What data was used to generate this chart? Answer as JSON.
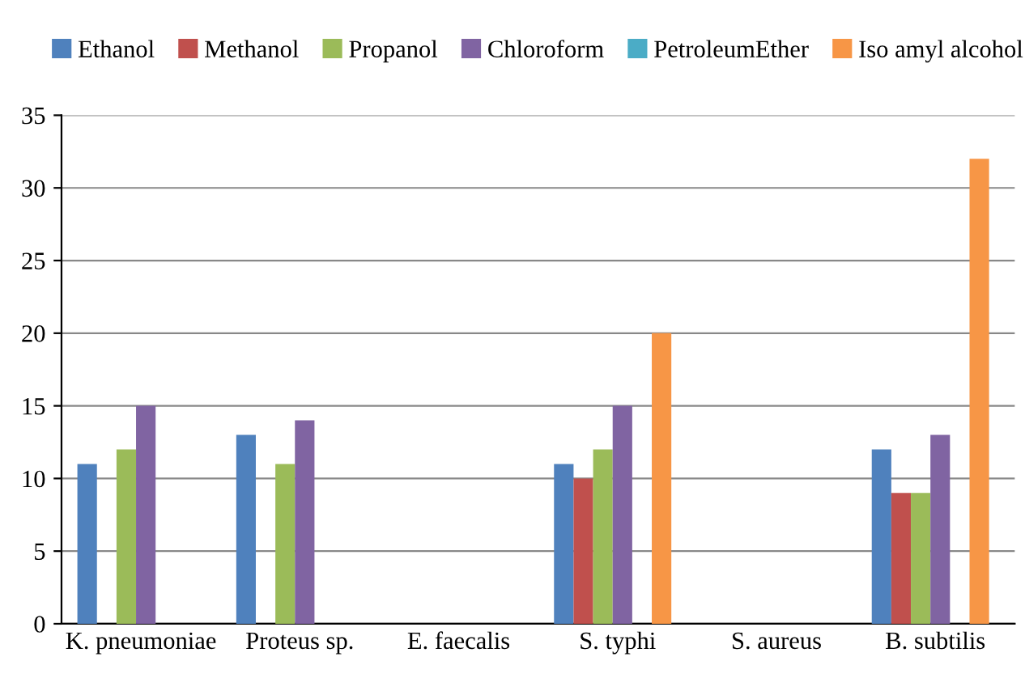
{
  "chart_data": {
    "type": "bar",
    "categories": [
      "K. pneumoniae",
      "Proteus sp.",
      "E. faecalis",
      "S. typhi",
      "S. aureus",
      "B. subtilis"
    ],
    "series": [
      {
        "name": "Ethanol",
        "color": "#4f81bd",
        "values": [
          11,
          13,
          0,
          11,
          0,
          12
        ]
      },
      {
        "name": "Methanol",
        "color": "#c0504d",
        "values": [
          0,
          0,
          0,
          10,
          0,
          9
        ]
      },
      {
        "name": "Propanol",
        "color": "#9bbb59",
        "values": [
          12,
          11,
          0,
          12,
          0,
          9
        ]
      },
      {
        "name": "Chloroform",
        "color": "#8064a2",
        "values": [
          15,
          14,
          0,
          15,
          0,
          13
        ]
      },
      {
        "name": "PetroleumEther",
        "color": "#4bacc6",
        "values": [
          0,
          0,
          0,
          0,
          0,
          0
        ]
      },
      {
        "name": "Iso amyl alcohol",
        "color": "#f79646",
        "values": [
          0,
          0,
          0,
          20,
          0,
          32
        ]
      }
    ],
    "ylim": [
      0,
      35
    ],
    "yticks": [
      0,
      5,
      10,
      15,
      20,
      25,
      30,
      35
    ],
    "grid": "y",
    "legend": "top"
  }
}
